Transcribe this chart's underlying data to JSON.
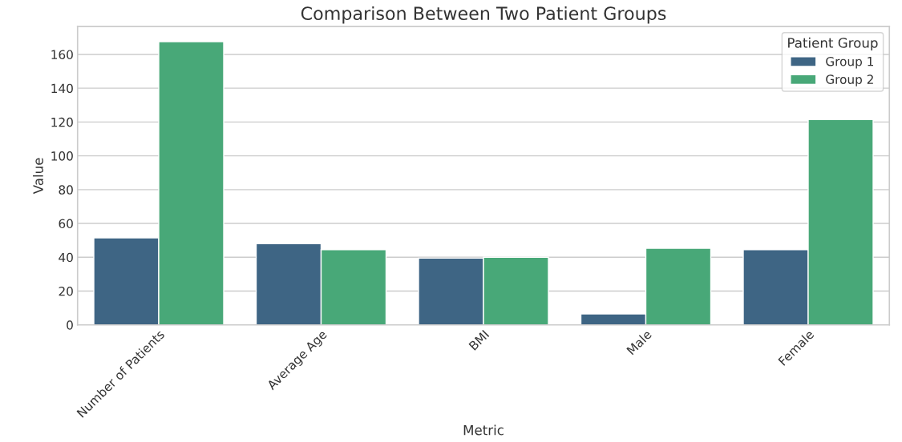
{
  "chart_data": {
    "type": "bar",
    "title": "Comparison Between Two Patient Groups",
    "xlabel": "Metric",
    "ylabel": "Value",
    "categories": [
      "Number of Patients",
      "Average Age",
      "BMI",
      "Male",
      "Female"
    ],
    "series": [
      {
        "name": "Group 1",
        "color": "#3e6584",
        "values": [
          51.5,
          48,
          39.5,
          6.5,
          44.5
        ]
      },
      {
        "name": "Group 2",
        "color": "#48a878",
        "values": [
          167.5,
          44.5,
          40,
          45.3,
          121.5
        ]
      }
    ],
    "legend_title": "Patient Group",
    "legend": "top right",
    "grid": "y",
    "ylim": [
      0,
      176.5
    ],
    "yticks": [
      0,
      20,
      40,
      60,
      80,
      100,
      120,
      140,
      160
    ]
  }
}
